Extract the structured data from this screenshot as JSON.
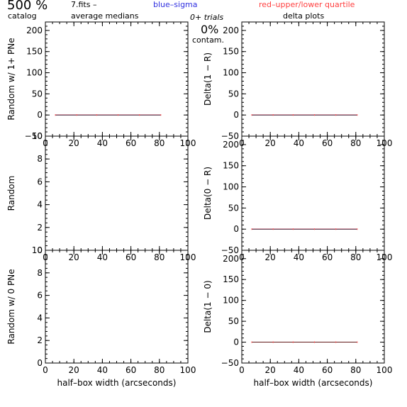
{
  "header": {
    "catalog_count": "500 %",
    "catalog_label": "catalog",
    "fits_name": "7.fits  –",
    "average_medians": "average medians",
    "blue_sigma": "blue–sigma",
    "red_quartile": "red–upper/lower quartile",
    "trials": "0+ trials",
    "delta_plots": "delta plots",
    "contam_pct": "0%",
    "contam_label": "contam."
  },
  "colors": {
    "sigma": "#3030e0",
    "quartile": "#ff4040",
    "median": "#000000",
    "frame": "#000000"
  },
  "chart_data": [
    {
      "type": "line",
      "id": "tl",
      "ylabel": "Random w/ 1+ PNe",
      "xlim": [
        0,
        100
      ],
      "ylim": [
        -50,
        220
      ],
      "xticks": [
        "0",
        "20",
        "40",
        "60",
        "80",
        "100"
      ],
      "yticks": [
        "−50",
        "0",
        "50",
        "100",
        "150",
        "200"
      ],
      "xlabel": "",
      "series": [
        {
          "x": [
            7,
            22,
            36,
            51,
            66,
            81
          ],
          "y": [
            0,
            0,
            0,
            0,
            0,
            0
          ]
        }
      ]
    },
    {
      "type": "line",
      "id": "tr",
      "ylabel": "Delta(1 − R)",
      "xlim": [
        0,
        100
      ],
      "ylim": [
        -50,
        220
      ],
      "xticks": [
        "0",
        "20",
        "40",
        "60",
        "80",
        "100"
      ],
      "yticks": [
        "−50",
        "0",
        "50",
        "100",
        "150",
        "200"
      ],
      "xlabel": "",
      "series": [
        {
          "x": [
            7,
            22,
            36,
            51,
            66,
            81
          ],
          "y": [
            0,
            0,
            0,
            0,
            0,
            0
          ]
        }
      ]
    },
    {
      "type": "line",
      "id": "ml",
      "ylabel": "Random",
      "xlim": [
        0,
        100
      ],
      "ylim": [
        0,
        10
      ],
      "xticks": [
        "0",
        "20",
        "40",
        "60",
        "80",
        "100"
      ],
      "yticks": [
        "0",
        "2",
        "4",
        "6",
        "8",
        "10"
      ],
      "xlabel": "",
      "series": []
    },
    {
      "type": "line",
      "id": "mr",
      "ylabel": "Delta(0 − R)",
      "xlim": [
        0,
        100
      ],
      "ylim": [
        -50,
        220
      ],
      "xticks": [
        "0",
        "20",
        "40",
        "60",
        "80",
        "100"
      ],
      "yticks": [
        "−50",
        "0",
        "50",
        "100",
        "150",
        "200"
      ],
      "xlabel": "",
      "series": [
        {
          "x": [
            7,
            22,
            36,
            51,
            66,
            81
          ],
          "y": [
            0,
            0,
            0,
            0,
            0,
            0
          ]
        }
      ]
    },
    {
      "type": "line",
      "id": "bl",
      "ylabel": "Random w/ 0 PNe",
      "xlim": [
        0,
        100
      ],
      "ylim": [
        0,
        10
      ],
      "xticks": [
        "0",
        "20",
        "40",
        "60",
        "80",
        "100"
      ],
      "yticks": [
        "0",
        "2",
        "4",
        "6",
        "8",
        "10"
      ],
      "xlabel": "half–box width (arcseconds)",
      "series": []
    },
    {
      "type": "line",
      "id": "br",
      "ylabel": "Delta(1 − 0)",
      "xlim": [
        0,
        100
      ],
      "ylim": [
        -50,
        220
      ],
      "xticks": [
        "0",
        "20",
        "40",
        "60",
        "80",
        "100"
      ],
      "yticks": [
        "−50",
        "0",
        "50",
        "100",
        "150",
        "200"
      ],
      "xlabel": "half–box width (arcseconds)",
      "series": [
        {
          "x": [
            7,
            22,
            36,
            51,
            66,
            81
          ],
          "y": [
            0,
            0,
            0,
            0,
            0,
            0
          ]
        }
      ]
    }
  ]
}
